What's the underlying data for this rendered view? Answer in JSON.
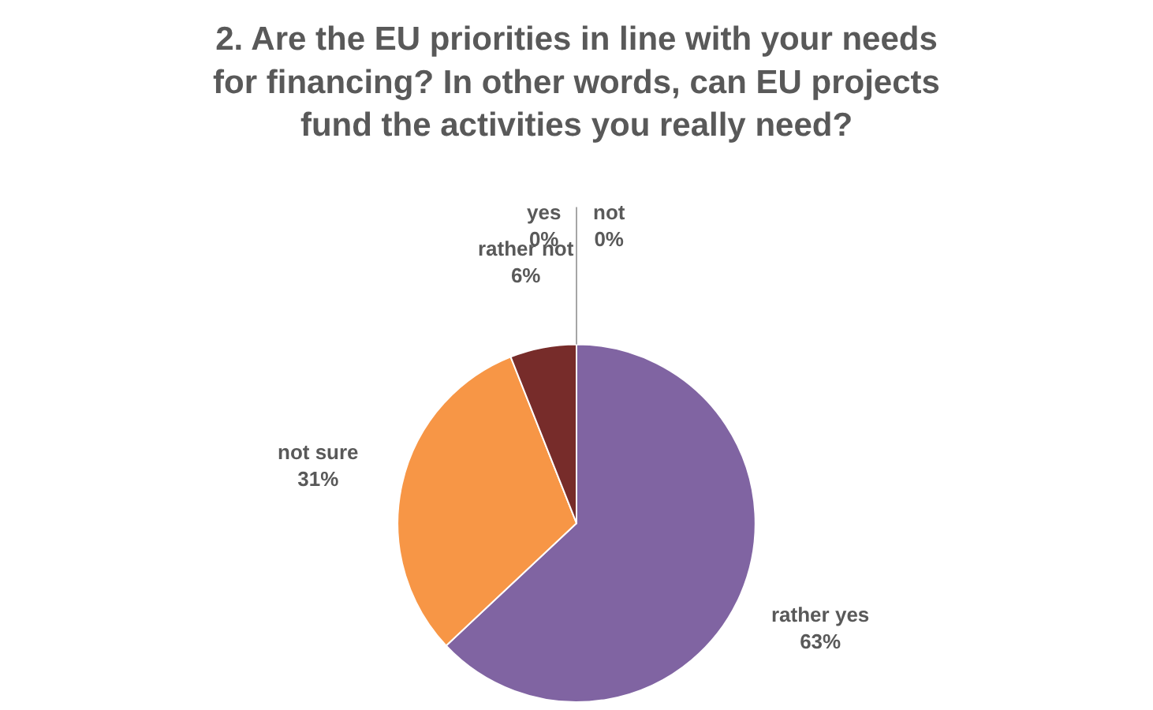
{
  "chart_data": {
    "type": "pie",
    "title": "2. Are the EU priorities in line with your needs for financing? In other words, can EU projects fund the activities you really need?",
    "categories": [
      "rather yes",
      "not sure",
      "rather not",
      "yes",
      "not"
    ],
    "values": [
      63,
      31,
      6,
      0,
      0
    ],
    "colors": [
      "#8064a2",
      "#f79646",
      "#772c2a",
      "#c0504d",
      "#403151"
    ],
    "value_labels": [
      "63%",
      "31%",
      "6%",
      "0%",
      "0%"
    ]
  }
}
